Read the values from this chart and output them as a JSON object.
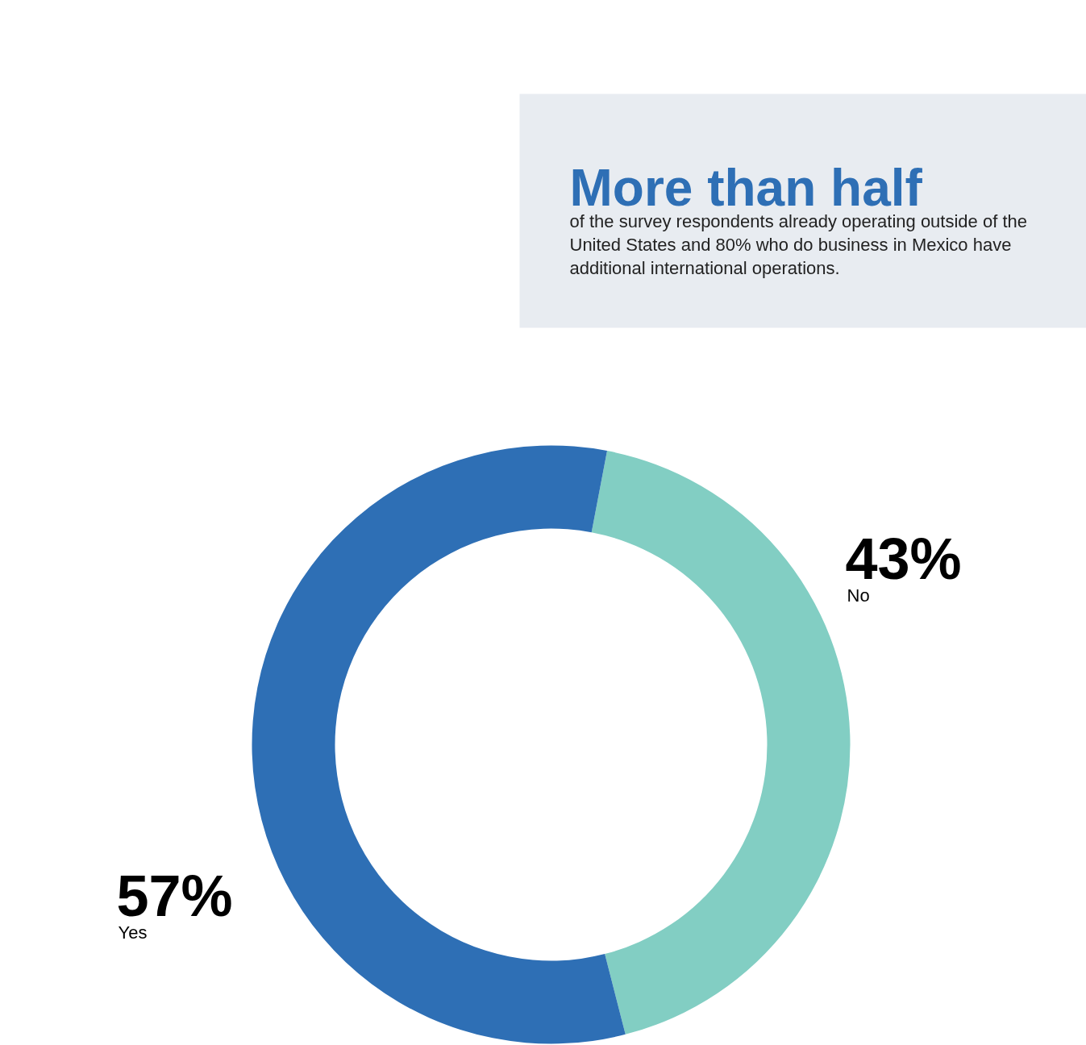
{
  "chart_data": {
    "type": "donut",
    "title": "More than half",
    "subtitle": "of the survey respondents already operating outside of the United States and 80% who do business in Mexico have additional international operations.",
    "categories": [
      "No",
      "Yes"
    ],
    "values": [
      43,
      57
    ],
    "colors": [
      "#82cec3",
      "#2e6fb5"
    ],
    "value_labels": [
      "43%",
      "57%"
    ]
  }
}
